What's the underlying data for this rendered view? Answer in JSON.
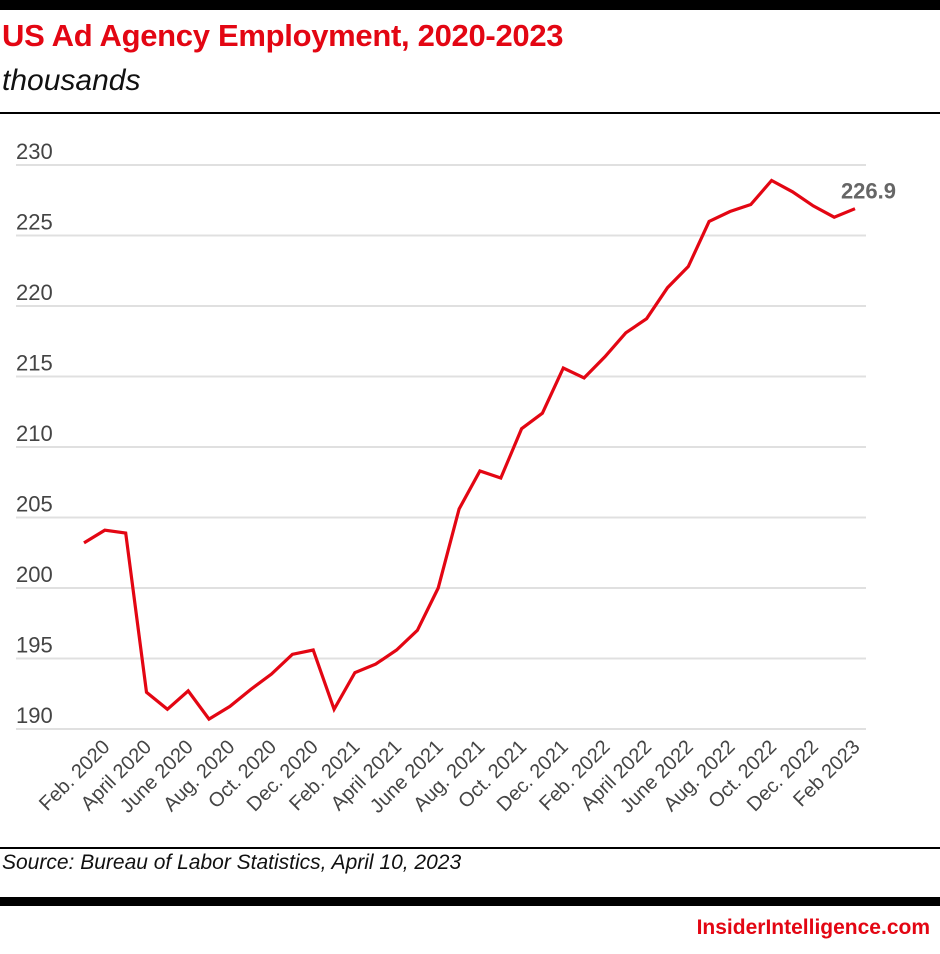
{
  "header": {
    "title": "US Ad Agency Employment, 2020-2023",
    "subtitle": "thousands"
  },
  "footer": {
    "source": "Source: Bureau of Labor Statistics, April 10, 2023",
    "brand": "InsiderIntelligence.com"
  },
  "colors": {
    "accent": "#e30613",
    "line": "#e30613",
    "grid": "#e0e0e0",
    "axis_text": "#444444",
    "annotation": "#666666"
  },
  "chart_data": {
    "type": "line",
    "title": "US Ad Agency Employment, 2020-2023",
    "subtitle": "thousands",
    "xlabel": "",
    "ylabel": "",
    "ylim": [
      190,
      230
    ],
    "yticks": [
      230,
      225,
      220,
      215,
      210,
      205,
      200,
      195,
      190
    ],
    "grid": true,
    "legend": "none",
    "x": [
      "Jan. 2020",
      "Feb. 2020",
      "March 2020",
      "April 2020",
      "May 2020",
      "June 2020",
      "July 2020",
      "Aug. 2020",
      "Sep. 2020",
      "Oct. 2020",
      "Nov. 2020",
      "Dec. 2020",
      "Jan. 2021",
      "Feb. 2021",
      "March 2021",
      "April 2021",
      "May 2021",
      "June 2021",
      "July 2021",
      "Aug. 2021",
      "Sep. 2021",
      "Oct. 2021",
      "Nov. 2021",
      "Dec. 2021",
      "Jan. 2022",
      "Feb. 2022",
      "March 2022",
      "April 2022",
      "May 2022",
      "June 2022",
      "July 2022",
      "Aug. 2022",
      "Sep. 2022",
      "Oct. 2022",
      "Nov. 2022",
      "Dec. 2022",
      "Jan. 2023",
      "Feb 2023"
    ],
    "tick_labels": [
      {
        "index": 1,
        "label": "Feb. 2020"
      },
      {
        "index": 3,
        "label": "April 2020"
      },
      {
        "index": 5,
        "label": "June 2020"
      },
      {
        "index": 7,
        "label": "Aug. 2020"
      },
      {
        "index": 9,
        "label": "Oct. 2020"
      },
      {
        "index": 11,
        "label": "Dec. 2020"
      },
      {
        "index": 13,
        "label": "Feb. 2021"
      },
      {
        "index": 15,
        "label": "April 2021"
      },
      {
        "index": 17,
        "label": "June 2021"
      },
      {
        "index": 19,
        "label": "Aug. 2021"
      },
      {
        "index": 21,
        "label": "Oct. 2021"
      },
      {
        "index": 23,
        "label": "Dec. 2021"
      },
      {
        "index": 25,
        "label": "Feb. 2022"
      },
      {
        "index": 27,
        "label": "April 2022"
      },
      {
        "index": 29,
        "label": "June 2022"
      },
      {
        "index": 31,
        "label": "Aug. 2022"
      },
      {
        "index": 33,
        "label": "Oct. 2022"
      },
      {
        "index": 35,
        "label": "Dec. 2022"
      },
      {
        "index": 37,
        "label": "Feb 2023"
      }
    ],
    "series": [
      {
        "name": "US Ad Agency Employment",
        "values": [
          203.2,
          204.1,
          203.9,
          192.6,
          191.4,
          192.7,
          190.7,
          191.6,
          192.8,
          193.9,
          195.3,
          195.6,
          191.4,
          194.0,
          194.6,
          195.6,
          197.0,
          200.0,
          205.6,
          208.3,
          207.8,
          211.3,
          212.4,
          215.6,
          214.9,
          216.4,
          218.1,
          219.1,
          221.3,
          222.8,
          226.0,
          226.7,
          227.2,
          228.9,
          228.1,
          227.1,
          226.3,
          226.9
        ]
      }
    ],
    "annotations": [
      {
        "index": 37,
        "label": "226.9"
      }
    ]
  }
}
